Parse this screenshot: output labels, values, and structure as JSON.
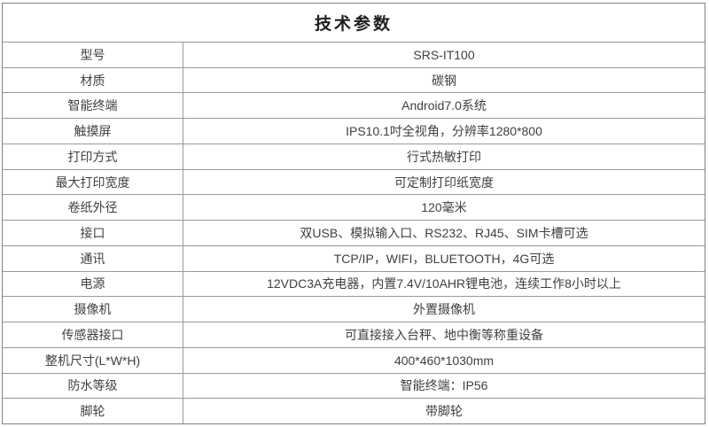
{
  "table": {
    "title": "技术参数",
    "rows": [
      {
        "label": "型号",
        "value": "SRS-IT100"
      },
      {
        "label": "材质",
        "value": "碳钢"
      },
      {
        "label": "智能终端",
        "value": "Android7.0系统"
      },
      {
        "label": "触摸屏",
        "value": "IPS10.1吋全视角，分辨率1280*800"
      },
      {
        "label": "打印方式",
        "value": "行式热敏打印"
      },
      {
        "label": "最大打印宽度",
        "value": "可定制打印纸宽度"
      },
      {
        "label": "卷纸外径",
        "value": "120毫米"
      },
      {
        "label": "接口",
        "value": "双USB、模拟输入口、RS232、RJ45、SIM卡槽可选"
      },
      {
        "label": "通讯",
        "value": "TCP/IP，WIFI，BLUETOOTH，4G可选"
      },
      {
        "label": "电源",
        "value": "12VDC3A充电器，内置7.4V/10AHR锂电池，连续工作8小时以上"
      },
      {
        "label": "摄像机",
        "value": "外置摄像机"
      },
      {
        "label": "传感器接口",
        "value": "可直接接入台秤、地中衡等称重设备"
      },
      {
        "label": "整机尺寸(L*W*H)",
        "value": "400*460*1030mm"
      },
      {
        "label": "防水等级",
        "value": "智能终端：IP56"
      },
      {
        "label": "脚轮",
        "value": "带脚轮"
      }
    ],
    "colors": {
      "outer_border": "#808080",
      "inner_border": "#999999",
      "text": "#404040",
      "title_text": "#1f1f1f",
      "background": "#ffffff"
    }
  }
}
